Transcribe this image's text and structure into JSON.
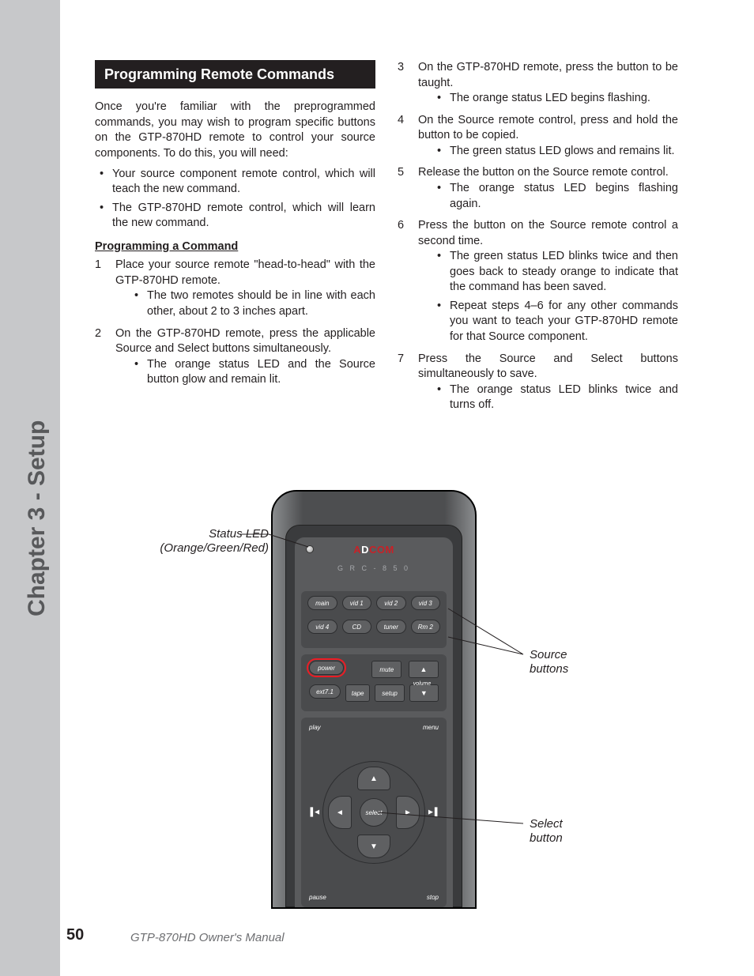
{
  "side_label": "Chapter 3 - Setup",
  "page_number": "50",
  "footer": "GTP-870HD Owner's Manual",
  "section_title": "Programming Remote Commands",
  "intro": "Once you're familiar with the preprogrammed commands, you may wish to program specific buttons on the GTP-870HD remote to control your source components. To do this, you will need:",
  "intro_bullets": [
    "Your source component remote control, which will teach the new command.",
    "The GTP-870HD remote control, which will learn the new command."
  ],
  "subheading": "Programming a Command",
  "steps_left": [
    {
      "n": "1",
      "text": "Place your source remote \"head-to-head\" with the GTP-870HD remote.",
      "sub": [
        "The two remotes should be in line with each other, about 2 to 3 inches apart."
      ]
    },
    {
      "n": "2",
      "text": "On the GTP-870HD remote, press the applicable Source and Select buttons simultaneously.",
      "sub": [
        "The orange status LED and the Source button glow and remain lit."
      ]
    }
  ],
  "steps_right": [
    {
      "n": "3",
      "text": "On the GTP-870HD remote, press the button to be taught.",
      "sub": [
        "The orange status LED begins flashing."
      ]
    },
    {
      "n": "4",
      "text": "On the Source remote control, press and hold the button to be copied.",
      "sub": [
        "The green status LED glows and remains lit."
      ]
    },
    {
      "n": "5",
      "text": "Release the button on the Source remote control.",
      "sub": [
        "The orange status LED begins flashing again."
      ]
    },
    {
      "n": "6",
      "text": "Press the button on the Source remote control a second time.",
      "sub": [
        "The green status LED blinks twice and then goes back to steady orange to indicate that the command has been saved.",
        "Repeat steps 4–6 for any other commands you want to teach your GTP-870HD remote for that Source component."
      ]
    },
    {
      "n": "7",
      "text": "Press the Source and Select buttons simultaneously to save.",
      "sub": [
        "The orange status LED blinks twice and turns off."
      ]
    }
  ],
  "callouts": {
    "led": "Status LED\n(Orange/Green/Red)",
    "source": "Source\nbuttons",
    "select": "Select\nbutton"
  },
  "remote": {
    "brand_prefix": "A",
    "brand_d": "D",
    "brand_suffix": "COM",
    "model": "G R C - 8 5 0",
    "src_row1": [
      "main",
      "vid 1",
      "vid 2",
      "vid 3"
    ],
    "src_row2": [
      "vid 4",
      "CD",
      "tuner",
      "Rm 2"
    ],
    "mid_row1": [
      "power",
      "mute",
      "▲"
    ],
    "mid_row2": [
      "ext7.1",
      "tape",
      "setup",
      "▼"
    ],
    "vol_label": "volume",
    "nav": {
      "tl": "play",
      "tr": "menu",
      "bl": "pause",
      "br": "stop",
      "skip_l": "▐◄◄",
      "skip_r": "►►▌",
      "up": "▲",
      "down": "▼",
      "left": "◄",
      "right": "►",
      "center": "select"
    }
  },
  "colors": {
    "sidebar": "#c7c8ca",
    "header_bg": "#231f20",
    "brand_red": "#c82127",
    "highlight": "#ed1c24"
  }
}
